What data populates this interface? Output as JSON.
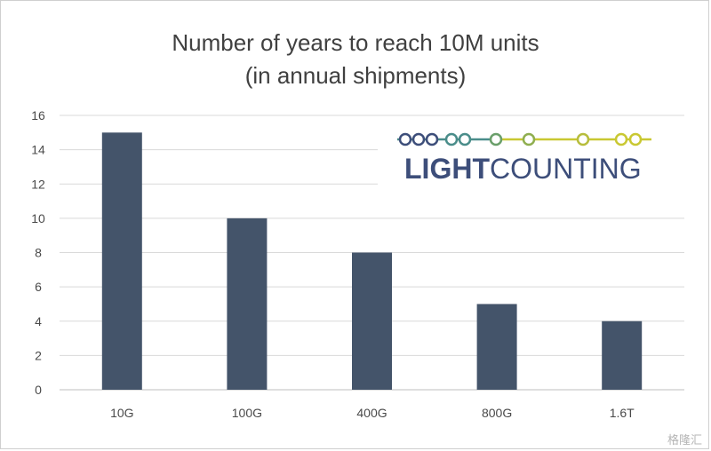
{
  "colors": {
    "bar": "#44546a",
    "grid": "#d9d9d9",
    "axis": "#bfbfbf",
    "logo_dark": "#3d4e7a",
    "logo_chain": "#4a8d8a",
    "logo_yellow": "#c9c832"
  },
  "logo": {
    "name_strong": "LIGHT",
    "name_light": "COUNTING",
    "chain_icon": "fiber-chain-icon"
  },
  "watermark": {
    "text": "格隆汇"
  },
  "chart_data": {
    "type": "bar",
    "title": "Number of years to reach 10M units",
    "subtitle": "(in annual shipments)",
    "categories": [
      "10G",
      "100G",
      "400G",
      "800G",
      "1.6T"
    ],
    "values": [
      15,
      10,
      8,
      5,
      4
    ],
    "yticks": [
      0,
      2,
      4,
      6,
      8,
      10,
      12,
      14,
      16
    ],
    "ylim": [
      0,
      16
    ],
    "xlabel": "",
    "ylabel": "",
    "grid": true,
    "legend": "none"
  }
}
